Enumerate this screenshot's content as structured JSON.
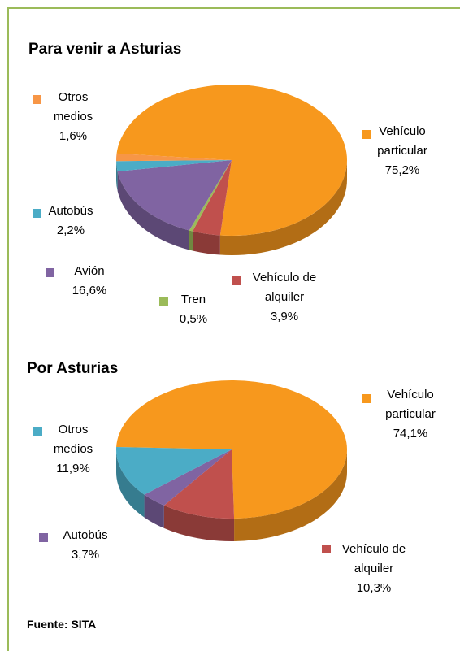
{
  "chart_data": [
    {
      "type": "pie",
      "title": "Para venir a Asturias",
      "categories": [
        "Vehículo particular",
        "Vehículo de alquiler",
        "Tren",
        "Avión",
        "Autobús",
        "Otros medios"
      ],
      "values": [
        75.2,
        3.9,
        0.5,
        16.6,
        2.2,
        1.6
      ],
      "value_labels": [
        "75,2%",
        "3,9%",
        "0,5%",
        "16,6%",
        "2,2%",
        "1,6%"
      ],
      "colors": [
        "#f7981d",
        "#c0504d",
        "#9bbb59",
        "#8064a2",
        "#4bacc6",
        "#f79646"
      ]
    },
    {
      "type": "pie",
      "title": "Por Asturias",
      "categories": [
        "Vehículo particular",
        "Vehículo de alquiler",
        "Autobús",
        "Otros medios"
      ],
      "values": [
        74.1,
        10.3,
        3.7,
        11.9
      ],
      "value_labels": [
        "74,1%",
        "10,3%",
        "3,7%",
        "11,9%"
      ],
      "colors": [
        "#f7981d",
        "#c0504d",
        "#8064a2",
        "#4bacc6"
      ]
    }
  ],
  "source": "Fuente: SITA"
}
